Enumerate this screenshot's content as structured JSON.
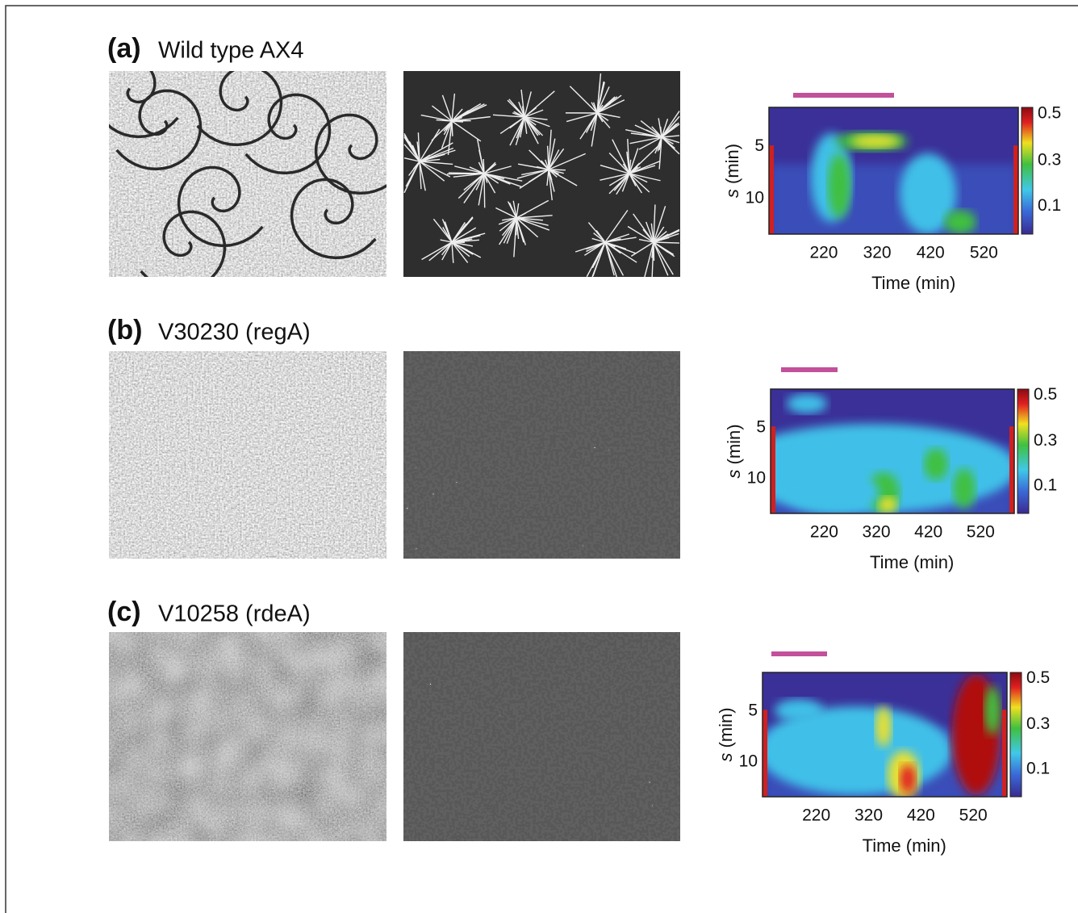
{
  "panels": [
    {
      "label": "(a)",
      "title": "Wild type AX4",
      "heatmap": {
        "y_label_var": "s",
        "y_label_unit": "(min)",
        "yticks": [
          5,
          10
        ],
        "xticks": [
          220,
          320,
          420,
          520
        ],
        "x_label": "Time (min)",
        "colorbar_ticks": [
          0.5,
          0.3,
          0.1
        ]
      }
    },
    {
      "label": "(b)",
      "title": "V30230 (regA)",
      "heatmap": {
        "y_label_var": "s",
        "y_label_unit": "(min)",
        "yticks": [
          5,
          10
        ],
        "xticks": [
          220,
          320,
          420,
          520
        ],
        "x_label": "Time (min)",
        "colorbar_ticks": [
          0.5,
          0.3,
          0.1
        ]
      }
    },
    {
      "label": "(c)",
      "title": "V10258 (rdeA)",
      "heatmap": {
        "y_label_var": "s",
        "y_label_unit": "(min)",
        "yticks": [
          5,
          10
        ],
        "xticks": [
          220,
          320,
          420,
          520
        ],
        "x_label": "Time (min)",
        "colorbar_ticks": [
          0.5,
          0.3,
          0.1
        ]
      }
    }
  ]
}
